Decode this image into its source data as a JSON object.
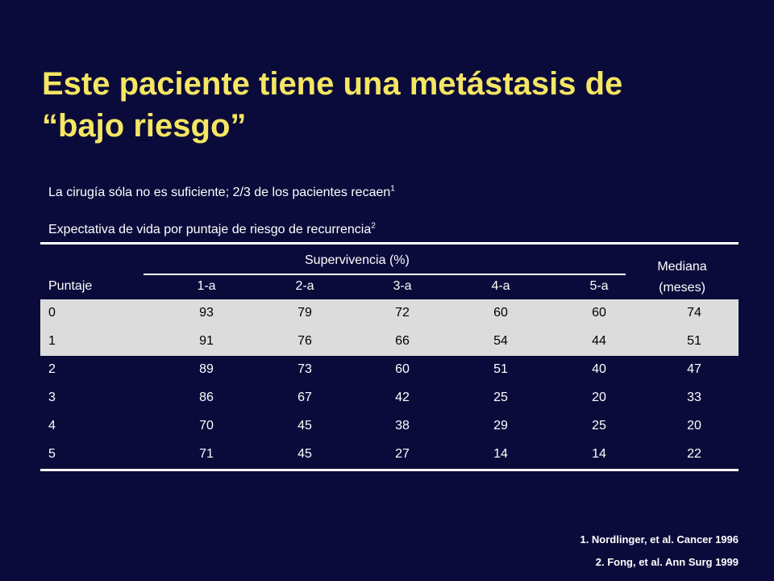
{
  "title": {
    "line1": "Este paciente tiene una metástasis de",
    "line2": "“bajo riesgo”"
  },
  "statements": [
    {
      "text": "La cirugía sóla no es suficiente; 2/3 de los pacientes recaen",
      "ref": "1"
    },
    {
      "text": "Expectativa de vida por puntaje de riesgo de recurrencia",
      "ref": "2"
    }
  ],
  "table": {
    "group_header": "Supervivencia (%)",
    "median_header_line1": "Mediana",
    "median_header_line2": "(meses)",
    "row_header": "Puntaje",
    "columns": [
      "1-a",
      "2-a",
      "3-a",
      "4-a",
      "5-a"
    ],
    "rows": [
      {
        "puntaje": "0",
        "values": [
          "93",
          "79",
          "72",
          "60",
          "60"
        ],
        "mediana": "74",
        "shaded": true
      },
      {
        "puntaje": "1",
        "values": [
          "91",
          "76",
          "66",
          "54",
          "44"
        ],
        "mediana": "51",
        "shaded": true
      },
      {
        "puntaje": "2",
        "values": [
          "89",
          "73",
          "60",
          "51",
          "40"
        ],
        "mediana": "47",
        "shaded": false
      },
      {
        "puntaje": "3",
        "values": [
          "86",
          "67",
          "42",
          "25",
          "20"
        ],
        "mediana": "33",
        "shaded": false
      },
      {
        "puntaje": "4",
        "values": [
          "70",
          "45",
          "38",
          "29",
          "25"
        ],
        "mediana": "20",
        "shaded": false
      },
      {
        "puntaje": "5",
        "values": [
          "71",
          "45",
          "27",
          "14",
          "14"
        ],
        "mediana": "22",
        "shaded": false
      }
    ]
  },
  "references": [
    "1. Nordlinger, et al. Cancer 1996",
    "2. Fong, et al. Ann Surg 1999"
  ],
  "colors": {
    "background": "#0b0b3b",
    "title": "#f5e663",
    "text": "#ffffff",
    "shaded_row": "#dcdcdc"
  }
}
